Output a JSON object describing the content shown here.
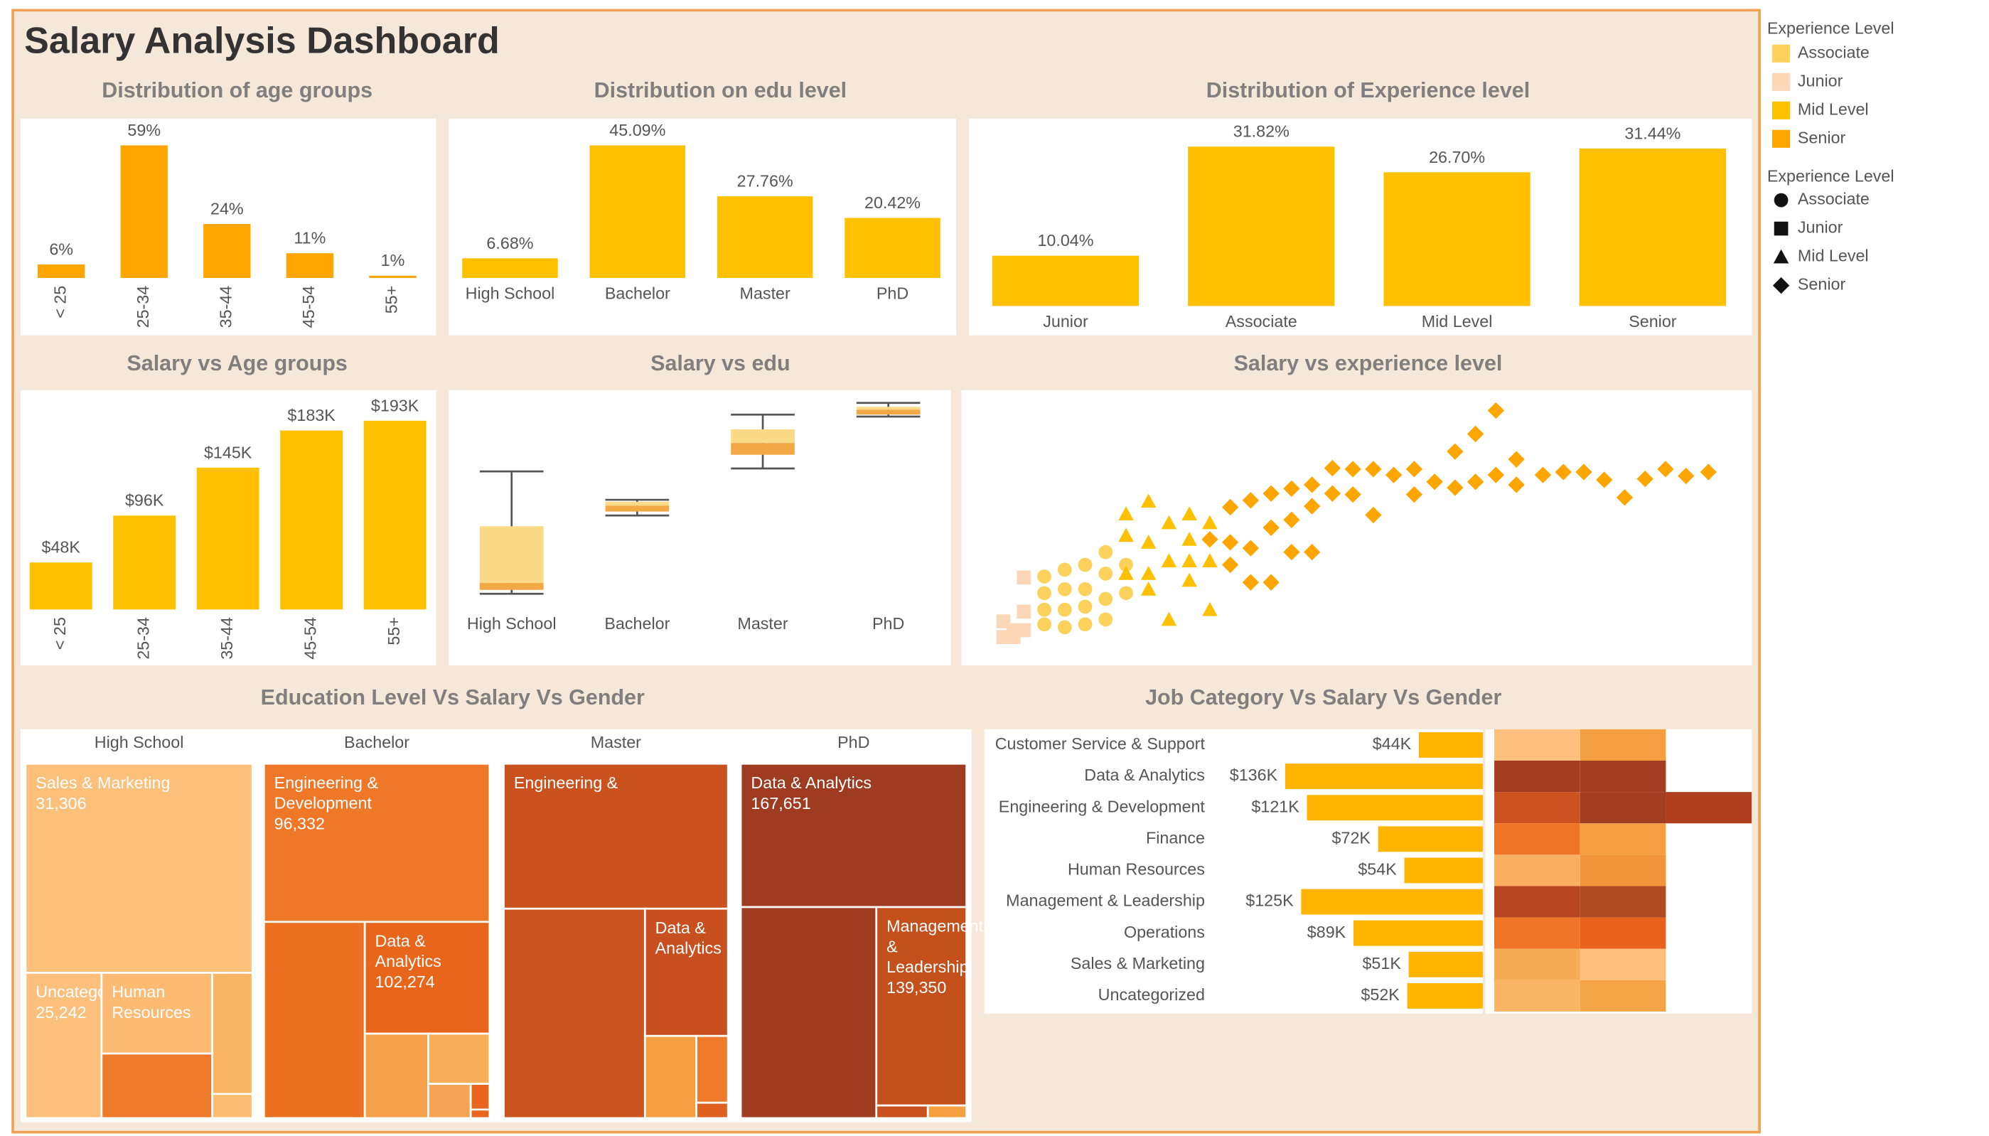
{
  "title": "Salary Analysis Dashboard",
  "chart_data": [
    {
      "type": "bar",
      "title": "Distribution of age groups",
      "categories": [
        "< 25",
        "25-34",
        "35-44",
        "45-54",
        "55+"
      ],
      "values": [
        6,
        59,
        24,
        11,
        1
      ],
      "value_labels": [
        "6%",
        "59%",
        "24%",
        "11%",
        "1%"
      ],
      "color": "#ffa500",
      "x_label_rotation": -90
    },
    {
      "type": "bar",
      "title": "Distribution on edu level",
      "categories": [
        "High School",
        "Bachelor",
        "Master",
        "PhD"
      ],
      "values": [
        6.68,
        45.09,
        27.76,
        20.42
      ],
      "value_labels": [
        "6.68%",
        "45.09%",
        "27.76%",
        "20.42%"
      ],
      "color": "#ffc000",
      "x_label_rotation": 0
    },
    {
      "type": "bar",
      "title": "Distribution of Experience level",
      "categories": [
        "Junior",
        "Associate",
        "Mid Level",
        "Senior"
      ],
      "values": [
        10.04,
        31.82,
        26.7,
        31.44
      ],
      "value_labels": [
        "10.04%",
        "31.82%",
        "26.70%",
        "31.44%"
      ],
      "color": "#ffc000",
      "x_label_rotation": 0
    },
    {
      "type": "bar",
      "title": "Salary vs Age groups",
      "categories": [
        "< 25",
        "25-34",
        "35-44",
        "45-54",
        "55+"
      ],
      "values": [
        48000,
        96000,
        145000,
        183000,
        193000
      ],
      "value_labels": [
        "$48K",
        "$96K",
        "$145K",
        "$183K",
        "$193K"
      ],
      "color": "#ffc000",
      "x_label_rotation": -90
    },
    {
      "type": "box",
      "title": "Salary vs edu",
      "categories": [
        "High School",
        "Bachelor",
        "Master",
        "PhD"
      ],
      "boxes": [
        {
          "min": 16000,
          "q1": 20000,
          "median": 27000,
          "q3": 85000,
          "max": 141000
        },
        {
          "min": 96000,
          "q1": 100000,
          "median": 106000,
          "q3": 110000,
          "max": 112000
        },
        {
          "min": 144000,
          "q1": 158000,
          "median": 170000,
          "q3": 184000,
          "max": 199000
        },
        {
          "min": 197000,
          "q1": 199000,
          "median": 204000,
          "q3": 207000,
          "max": 211000
        }
      ],
      "upper_color": "#fad987",
      "lower_color": "#f2a845",
      "whisker_color": "#555555"
    },
    {
      "type": "scatter",
      "title": "Salary vs experience level",
      "legend_title": "Experience Level",
      "series": [
        {
          "name": "Associate",
          "color": "#fcd25c",
          "marker": "circle",
          "x": [
            3.1,
            3.1,
            3.1,
            3.1,
            4.1,
            4.1,
            4.1,
            4.1,
            5.1,
            5.1,
            5.1,
            5.1,
            6.1,
            6.1,
            6.1,
            6.1,
            7.1,
            7.1
          ],
          "y": [
            69000,
            52000,
            35000,
            20000,
            76000,
            56000,
            35000,
            17000,
            81000,
            56000,
            38000,
            20000,
            94000,
            72000,
            46000,
            25000,
            81000,
            52000
          ]
        },
        {
          "name": "Junior",
          "color": "#fcd8b8",
          "marker": "square",
          "x": [
            1.1,
            1.1,
            1.6,
            1.6,
            2.1,
            2.1,
            2.1
          ],
          "y": [
            23000,
            7000,
            14000,
            7000,
            33000,
            68000,
            14000
          ]
        },
        {
          "name": "Mid Level",
          "color": "#ffc000",
          "marker": "triangle",
          "x": [
            7.1,
            7.1,
            7.1,
            8.2,
            8.2,
            8.2,
            8.2,
            9.2,
            9.2,
            9.2,
            10.2,
            10.2,
            10.2,
            10.2,
            11.2,
            11.2,
            11.2
          ],
          "y": [
            133000,
            111000,
            72000,
            146000,
            104000,
            72000,
            56000,
            124000,
            85000,
            25000,
            133000,
            107000,
            85000,
            65000,
            124000,
            85000,
            35000
          ]
        },
        {
          "name": "Senior",
          "color": "#ffa500",
          "marker": "diamond",
          "x": [
            11.2,
            12.2,
            12.2,
            12.2,
            13.2,
            13.2,
            13.2,
            14.2,
            14.2,
            14.2,
            15.2,
            15.2,
            15.2,
            16.2,
            16.2,
            16.2,
            17.2,
            17.2,
            18.2,
            18.2,
            19.2,
            19.2,
            20.2,
            21.2,
            21.2,
            22.2,
            23.2,
            23.2,
            24.2,
            24.2,
            25.2,
            25.2,
            26.2,
            26.2,
            27.5,
            28.5,
            29.5,
            30.5,
            31.5,
            32.5,
            33.5,
            34.5,
            35.6
          ],
          "y": [
            107000,
            140000,
            104000,
            81000,
            147000,
            98000,
            63000,
            154000,
            119000,
            63000,
            159000,
            127000,
            94000,
            163000,
            141000,
            94000,
            180000,
            154000,
            179000,
            153000,
            179000,
            132000,
            173000,
            179000,
            153000,
            166000,
            160000,
            197000,
            215000,
            166000,
            239000,
            173000,
            189000,
            163000,
            173000,
            176000,
            176000,
            168000,
            150000,
            169000,
            179000,
            172000,
            176000
          ]
        }
      ]
    },
    {
      "type": "treemap",
      "title": "Education Level Vs Salary Vs Gender",
      "groups": [
        {
          "name": "High School",
          "tiles": [
            {
              "name": "Sales & Marketing",
              "value": 31306,
              "value_label": "31,306",
              "size": 292,
              "color": "#fdc07a"
            },
            {
              "name": "Uncategorized",
              "value": 25242,
              "value_label": "25,242",
              "size": 68,
              "color": "#fcc07c"
            },
            {
              "name": "Human Resources",
              "size": 55,
              "color": "#fdba72"
            },
            {
              "size": 44,
              "color": "#ee7a2b"
            },
            {
              "size": 30,
              "color": "#f9b464"
            },
            {
              "size": 6,
              "color": "#fbbd72"
            }
          ]
        },
        {
          "name": "Bachelor",
          "tiles": [
            {
              "name": "Engineering & Development",
              "value": 96332,
              "value_label": "96,332",
              "size": 220,
              "color": "#ee7728"
            },
            {
              "size": 122,
              "color": "#ec7020"
            },
            {
              "name": "Data & Analytics",
              "value": 102274,
              "value_label": "102,274",
              "size": 86,
              "color": "#e8651c"
            },
            {
              "size": 33,
              "color": "#f5a04a"
            },
            {
              "size": 19,
              "color": "#f7ae58"
            },
            {
              "size": 9,
              "color": "#f5a455"
            },
            {
              "size": 3,
              "color": "#e86520"
            },
            {
              "size": 1,
              "color": "#e8651c"
            }
          ]
        },
        {
          "name": "Master",
          "tiles": [
            {
              "name": "Engineering &",
              "size": 200,
              "color": "#c9521e"
            },
            {
              "size": 182,
              "color": "#ca5520"
            },
            {
              "name": "Data & Analytics",
              "size": 65,
              "color": "#c85020"
            },
            {
              "size": 26,
              "color": "#f5a040"
            },
            {
              "size": 13,
              "color": "#ee7a2a"
            },
            {
              "size": 3,
              "color": "#e06020"
            }
          ]
        },
        {
          "name": "PhD",
          "tiles": [
            {
              "name": "Data & Analytics",
              "value": 167651,
              "value_label": "167,651",
              "size": 199,
              "color": "#9f3b20"
            },
            {
              "size": 176,
              "color": "#a03d20"
            },
            {
              "name": "Management & Leadership",
              "value": 139350,
              "value_label": "139,350",
              "size": 110,
              "color": "#c4501c"
            },
            {
              "size": 4,
              "color": "#c8511f"
            },
            {
              "size": 3,
              "color": "#f5a040"
            }
          ]
        }
      ]
    },
    {
      "type": "hbar",
      "title": "Job Category Vs Salary Vs Gender",
      "categories": [
        "Customer Service & Support",
        "Data & Analytics",
        "Engineering & Development",
        "Finance",
        "Human Resources",
        "Management & Leadership",
        "Operations",
        "Sales & Marketing",
        "Uncategorized"
      ],
      "values": [
        44000,
        136000,
        121000,
        72000,
        54000,
        125000,
        89000,
        51000,
        52000
      ],
      "value_labels": [
        "$44K",
        "$136K",
        "$121K",
        "$72K",
        "$54K",
        "$125K",
        "$89K",
        "$51K",
        "$52K"
      ],
      "color": "#ffb400",
      "heatmap_colors": [
        [
          "#fdc07e",
          "#f5a040",
          null
        ],
        [
          "#a43d22",
          "#a33e22",
          null
        ],
        [
          "#cc5420",
          "#a33e22",
          "#b03f1f"
        ],
        [
          "#ef7428",
          "#f5a040",
          null
        ],
        [
          "#f8b060",
          "#f29439",
          null
        ],
        [
          "#b74620",
          "#b04a22",
          null
        ],
        [
          "#ef7428",
          "#e8621c",
          null
        ],
        [
          "#f6ab55",
          "#fcc07c",
          null
        ],
        [
          "#f9b465",
          "#f5a446",
          null
        ]
      ]
    }
  ]
}
